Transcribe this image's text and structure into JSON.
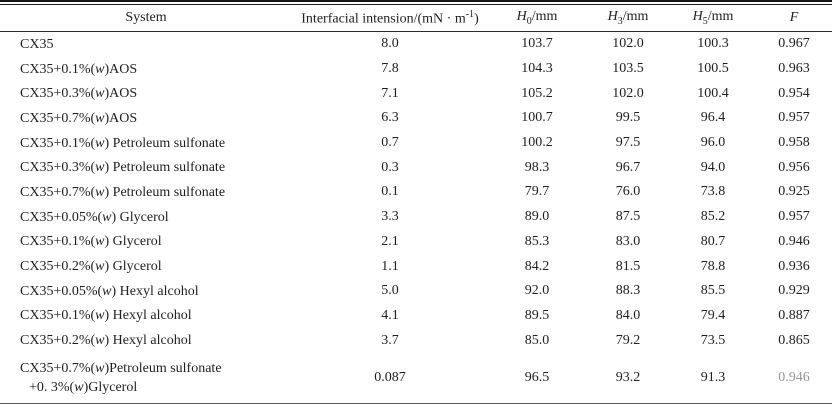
{
  "table": {
    "columns": [
      {
        "name": "system",
        "segments": [
          {
            "t": "System"
          }
        ]
      },
      {
        "name": "interfacial-tension",
        "segments": [
          {
            "t": "Interfacial intension/(mN · m"
          },
          {
            "t": "-1",
            "sup": true
          },
          {
            "t": ")"
          }
        ]
      },
      {
        "name": "h0",
        "segments": [
          {
            "t": "H",
            "i": true
          },
          {
            "t": "0",
            "sub": true
          },
          {
            "t": "/mm"
          }
        ]
      },
      {
        "name": "h3",
        "segments": [
          {
            "t": "H",
            "i": true
          },
          {
            "t": "3",
            "sub": true
          },
          {
            "t": "/mm"
          }
        ]
      },
      {
        "name": "h5",
        "segments": [
          {
            "t": "H",
            "i": true
          },
          {
            "t": "5",
            "sub": true
          },
          {
            "t": "/mm"
          }
        ]
      },
      {
        "name": "f",
        "segments": [
          {
            "t": "F",
            "i": true
          }
        ]
      }
    ],
    "rows": [
      {
        "system": [
          [
            {
              "t": "CX35"
            }
          ]
        ],
        "values": [
          "8.0",
          "103.7",
          "102.0",
          "100.3",
          "0.967"
        ]
      },
      {
        "system": [
          [
            {
              "t": "CX35+0.1%("
            },
            {
              "t": "w",
              "i": true
            },
            {
              "t": ")AOS"
            }
          ]
        ],
        "values": [
          "7.8",
          "104.3",
          "103.5",
          "100.5",
          "0.963"
        ]
      },
      {
        "system": [
          [
            {
              "t": "CX35+0.3%("
            },
            {
              "t": "w",
              "i": true
            },
            {
              "t": ")AOS"
            }
          ]
        ],
        "values": [
          "7.1",
          "105.2",
          "102.0",
          "100.4",
          "0.954"
        ]
      },
      {
        "system": [
          [
            {
              "t": "CX35+0.7%("
            },
            {
              "t": "w",
              "i": true
            },
            {
              "t": ")AOS"
            }
          ]
        ],
        "values": [
          "6.3",
          "100.7",
          "99.5",
          "96.4",
          "0.957"
        ]
      },
      {
        "system": [
          [
            {
              "t": "CX35+0.1%("
            },
            {
              "t": "w",
              "i": true
            },
            {
              "t": ") Petroleum sulfonate"
            }
          ]
        ],
        "values": [
          "0.7",
          "100.2",
          "97.5",
          "96.0",
          "0.958"
        ]
      },
      {
        "system": [
          [
            {
              "t": "CX35+0.3%("
            },
            {
              "t": "w",
              "i": true
            },
            {
              "t": ") Petroleum sulfonate"
            }
          ]
        ],
        "values": [
          "0.3",
          "98.3",
          "96.7",
          "94.0",
          "0.956"
        ]
      },
      {
        "system": [
          [
            {
              "t": "CX35+0.7%("
            },
            {
              "t": "w",
              "i": true
            },
            {
              "t": ") Petroleum sulfonate"
            }
          ]
        ],
        "values": [
          "0.1",
          "79.7",
          "76.0",
          "73.8",
          "0.925"
        ]
      },
      {
        "system": [
          [
            {
              "t": "CX35+0.05%("
            },
            {
              "t": "w",
              "i": true
            },
            {
              "t": ") Glycerol"
            }
          ]
        ],
        "values": [
          "3.3",
          "89.0",
          "87.5",
          "85.2",
          "0.957"
        ]
      },
      {
        "system": [
          [
            {
              "t": "CX35+0.1%("
            },
            {
              "t": "w",
              "i": true
            },
            {
              "t": ") Glycerol"
            }
          ]
        ],
        "values": [
          "2.1",
          "85.3",
          "83.0",
          "80.7",
          "0.946"
        ]
      },
      {
        "system": [
          [
            {
              "t": "CX35+0.2%("
            },
            {
              "t": "w",
              "i": true
            },
            {
              "t": ") Glycerol"
            }
          ]
        ],
        "values": [
          "1.1",
          "84.2",
          "81.5",
          "78.8",
          "0.936"
        ]
      },
      {
        "system": [
          [
            {
              "t": "CX35+0.05%("
            },
            {
              "t": "w",
              "i": true
            },
            {
              "t": ") Hexyl alcohol"
            }
          ]
        ],
        "values": [
          "5.0",
          "92.0",
          "88.3",
          "85.5",
          "0.929"
        ]
      },
      {
        "system": [
          [
            {
              "t": "CX35+0.1%("
            },
            {
              "t": "w",
              "i": true
            },
            {
              "t": ") Hexyl alcohol"
            }
          ]
        ],
        "values": [
          "4.1",
          "89.5",
          "84.0",
          "79.4",
          "0.887"
        ]
      },
      {
        "system": [
          [
            {
              "t": "CX35+0.2%("
            },
            {
              "t": "w",
              "i": true
            },
            {
              "t": ") Hexyl alcohol"
            }
          ]
        ],
        "values": [
          "3.7",
          "85.0",
          "79.2",
          "73.5",
          "0.865"
        ]
      },
      {
        "system": [
          [
            {
              "t": "CX35+0.7%("
            },
            {
              "t": "w",
              "i": true
            },
            {
              "t": ")Petroleum sulfonate"
            }
          ],
          [
            {
              "t": "+0. 3%("
            },
            {
              "t": "w",
              "i": true
            },
            {
              "t": ")Glycerol"
            }
          ]
        ],
        "values": [
          "0.087",
          "96.5",
          "93.2",
          "91.3",
          "0.946"
        ],
        "tall": true,
        "faded_last": true
      }
    ]
  },
  "colors": {
    "text": "#1f1f1f",
    "rule_dark": "#161616",
    "rule_light": "#5f5f5f",
    "background": "#ffffff"
  }
}
